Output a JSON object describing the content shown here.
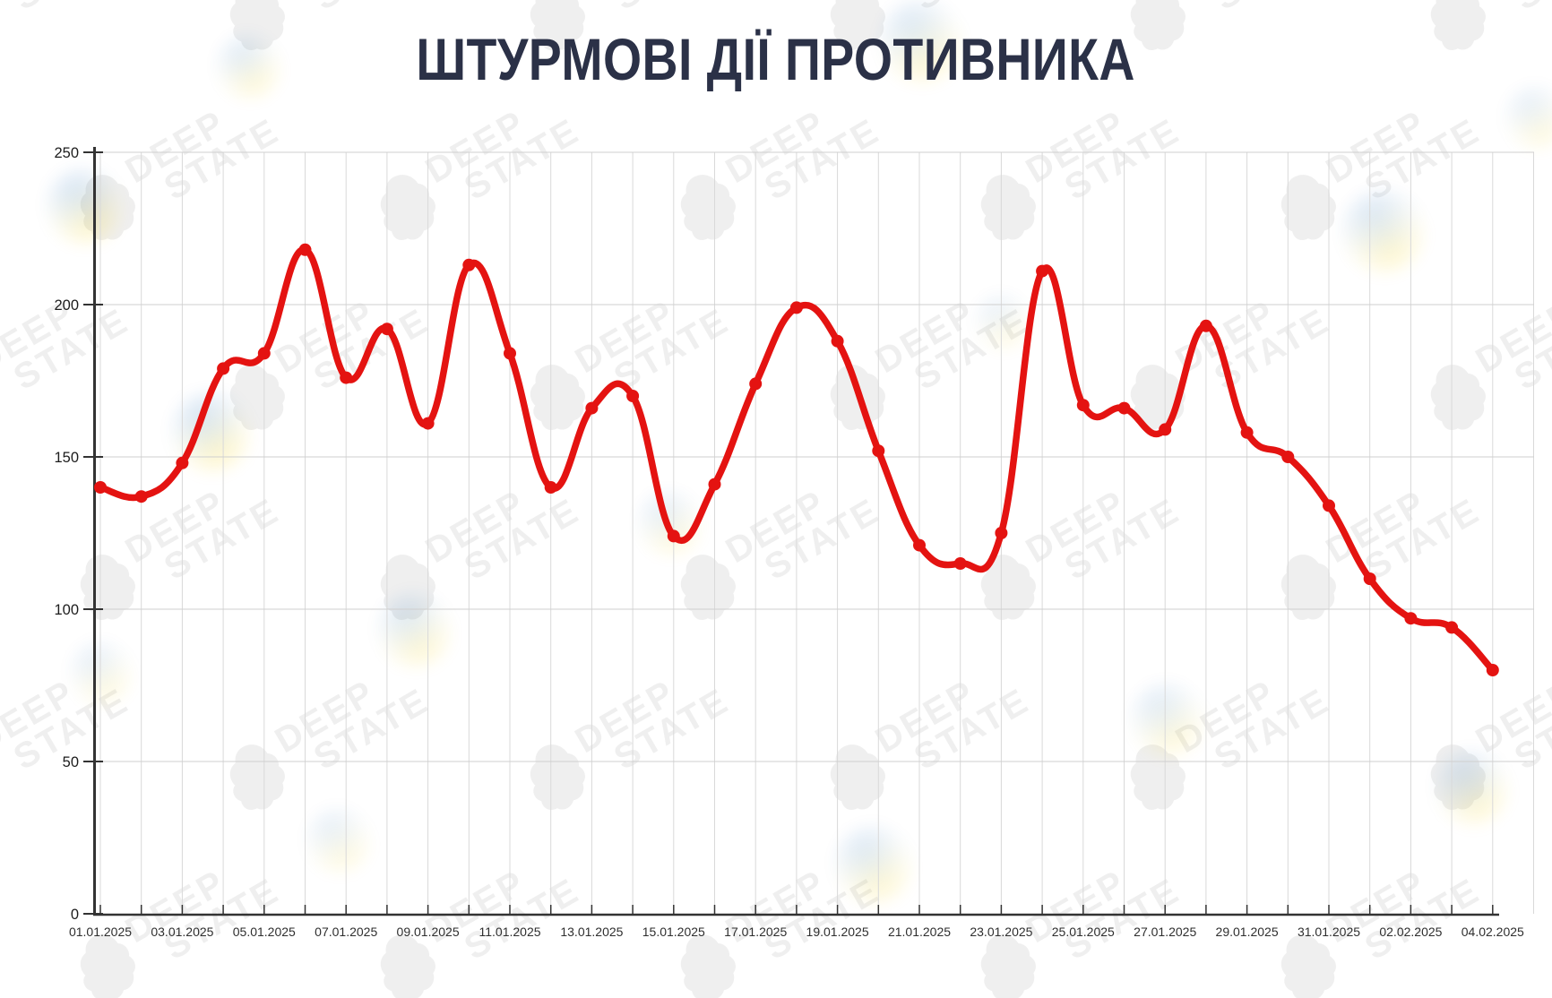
{
  "title": "ШТУРМОВІ ДІЇ ПРОТИВНИКА",
  "watermark": {
    "line1": "DEEP",
    "line2": "STATE"
  },
  "brand_colors": {
    "blue": "#005bbb",
    "yellow": "#ffd500",
    "title_navy": "#2b3147"
  },
  "chart_data": {
    "type": "line",
    "title": "ШТУРМОВІ ДІЇ ПРОТИВНИКА",
    "series_name": "Штурмові дії противника",
    "line_color": "#e41311",
    "grid": true,
    "legend": false,
    "marker": "circle",
    "xlabel": "",
    "ylabel": "",
    "ylim": [
      0,
      250
    ],
    "yticks": [
      0,
      50,
      100,
      150,
      200,
      250
    ],
    "x": [
      "01.01.2025",
      "02.01.2025",
      "03.01.2025",
      "04.01.2025",
      "05.01.2025",
      "06.01.2025",
      "07.01.2025",
      "08.01.2025",
      "09.01.2025",
      "10.01.2025",
      "11.01.2025",
      "12.01.2025",
      "13.01.2025",
      "14.01.2025",
      "15.01.2025",
      "16.01.2025",
      "17.01.2025",
      "18.01.2025",
      "19.01.2025",
      "20.01.2025",
      "21.01.2025",
      "22.01.2025",
      "23.01.2025",
      "24.01.2025",
      "25.01.2025",
      "26.01.2025",
      "27.01.2025",
      "28.01.2025",
      "29.01.2025",
      "30.01.2025",
      "31.01.2025",
      "01.02.2025",
      "02.02.2025",
      "03.02.2025",
      "04.02.2025"
    ],
    "values": [
      140,
      137,
      148,
      179,
      184,
      218,
      176,
      192,
      161,
      213,
      184,
      140,
      166,
      170,
      124,
      141,
      174,
      199,
      188,
      152,
      121,
      115,
      125,
      211,
      167,
      166,
      159,
      193,
      158,
      150,
      134,
      110,
      97,
      94,
      80
    ],
    "x_tick_labels": [
      "01.01.2025",
      "03.01.2025",
      "05.01.2025",
      "07.01.2025",
      "09.01.2025",
      "11.01.2025",
      "13.01.2025",
      "15.01.2025",
      "17.01.2025",
      "19.01.2025",
      "21.01.2025",
      "23.01.2025",
      "25.01.2025",
      "27.01.2025",
      "29.01.2025",
      "31.01.2025",
      "02.02.2025",
      "04.02.2025"
    ]
  }
}
